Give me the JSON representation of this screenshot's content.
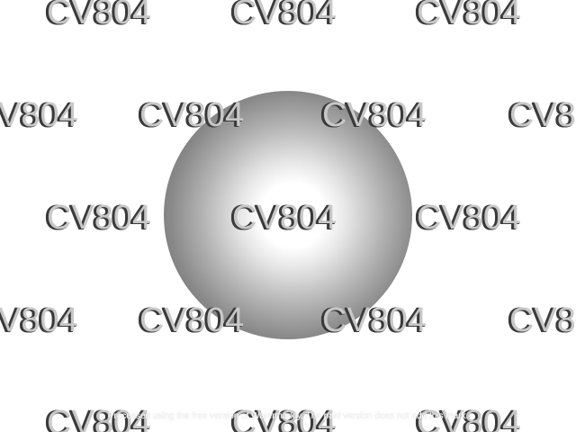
{
  "watermark": {
    "text": "CV804",
    "visible_text": "CV804",
    "partial_left": "V804",
    "partial_right": "CV8"
  },
  "footer_note": "Processed using the free version of Watermarkly. The paid version does not add this mark.",
  "colors": {
    "background": "#ffffff",
    "sphere_highlight": "#ffffff",
    "sphere_mid": "#b4b4b4",
    "sphere_edge": "#555555",
    "watermark_fill": "#c8c8c8",
    "watermark_shadow": "#3a3a3a"
  }
}
